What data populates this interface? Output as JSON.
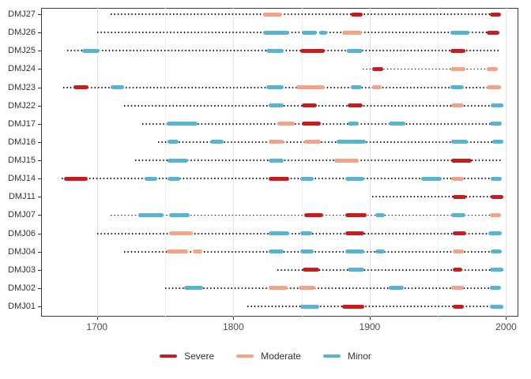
{
  "chart_data": {
    "type": "segment-timeline",
    "title": "",
    "xlabel": "",
    "ylabel": "",
    "x_axis": {
      "range": [
        1659,
        2009
      ],
      "major_ticks": [
        1700,
        1800,
        1900,
        2000
      ],
      "minor_gridlines": [
        1750,
        1850,
        1950
      ],
      "grid": true
    },
    "categories": [
      "DMJ27",
      "DMJ26",
      "DMJ25",
      "DMJ24",
      "DMJ23",
      "DMJ22",
      "DMJ17",
      "DMJ16",
      "DMJ15",
      "DMJ14",
      "DMJ11",
      "DMJ07",
      "DMJ06",
      "DMJ04",
      "DMJ03",
      "DMJ02",
      "DMJ01"
    ],
    "legend": [
      {
        "label": "Severe",
        "color": "#CB1B1D"
      },
      {
        "label": "Moderate",
        "color": "#F3A285"
      },
      {
        "label": "Minor",
        "color": "#56B4D2"
      }
    ],
    "legend_position": "bottom-center",
    "severity_colors": {
      "Severe": "#CB1B1D",
      "Moderate": "#F3A285",
      "Minor": "#56B4D2"
    },
    "dotted_line_color": "#1a1a1a",
    "rows": [
      {
        "id": "DMJ27",
        "line": [
          1710,
          1996
        ],
        "segments": [
          {
            "start": 1822,
            "end": 1836,
            "severity": "Moderate"
          },
          {
            "start": 1886,
            "end": 1895,
            "severity": "Severe"
          },
          {
            "start": 1988,
            "end": 1996,
            "severity": "Severe"
          }
        ]
      },
      {
        "id": "DMJ26",
        "line": [
          1700,
          1995
        ],
        "segments": [
          {
            "start": 1822,
            "end": 1841,
            "severity": "Minor"
          },
          {
            "start": 1850,
            "end": 1861,
            "severity": "Minor"
          },
          {
            "start": 1863,
            "end": 1869,
            "severity": "Minor"
          },
          {
            "start": 1880,
            "end": 1894,
            "severity": "Moderate"
          },
          {
            "start": 1959,
            "end": 1973,
            "severity": "Minor"
          },
          {
            "start": 1986,
            "end": 1995,
            "severity": "Severe"
          }
        ]
      },
      {
        "id": "DMJ25",
        "line": [
          1678,
          1995
        ],
        "segments": [
          {
            "start": 1689,
            "end": 1702,
            "severity": "Minor"
          },
          {
            "start": 1824,
            "end": 1837,
            "severity": "Minor"
          },
          {
            "start": 1849,
            "end": 1867,
            "severity": "Severe"
          },
          {
            "start": 1883,
            "end": 1895,
            "severity": "Minor"
          },
          {
            "start": 1959,
            "end": 1970,
            "severity": "Severe"
          }
        ]
      },
      {
        "id": "DMJ24",
        "line": [
          1895,
          1994
        ],
        "segments": [
          {
            "start": 1902,
            "end": 1910,
            "severity": "Severe"
          },
          {
            "start": 1959,
            "end": 1970,
            "severity": "Moderate"
          },
          {
            "start": 1986,
            "end": 1994,
            "severity": "Moderate"
          }
        ]
      },
      {
        "id": "DMJ23",
        "line": [
          1675,
          1996
        ],
        "segments": [
          {
            "start": 1683,
            "end": 1694,
            "severity": "Severe"
          },
          {
            "start": 1710,
            "end": 1720,
            "severity": "Minor"
          },
          {
            "start": 1824,
            "end": 1837,
            "severity": "Minor"
          },
          {
            "start": 1846,
            "end": 1867,
            "severity": "Moderate"
          },
          {
            "start": 1886,
            "end": 1894,
            "severity": "Minor"
          },
          {
            "start": 1902,
            "end": 1909,
            "severity": "Moderate"
          },
          {
            "start": 1959,
            "end": 1969,
            "severity": "Minor"
          },
          {
            "start": 1986,
            "end": 1996,
            "severity": "Moderate"
          }
        ]
      },
      {
        "id": "DMJ22",
        "line": [
          1720,
          1998
        ],
        "segments": [
          {
            "start": 1826,
            "end": 1837,
            "severity": "Minor"
          },
          {
            "start": 1850,
            "end": 1861,
            "severity": "Severe"
          },
          {
            "start": 1884,
            "end": 1895,
            "severity": "Severe"
          },
          {
            "start": 1960,
            "end": 1969,
            "severity": "Moderate"
          },
          {
            "start": 1989,
            "end": 1998,
            "severity": "Minor"
          }
        ]
      },
      {
        "id": "DMJ17",
        "line": [
          1733,
          1997
        ],
        "segments": [
          {
            "start": 1751,
            "end": 1774,
            "severity": "Minor"
          },
          {
            "start": 1832,
            "end": 1845,
            "severity": "Moderate"
          },
          {
            "start": 1850,
            "end": 1864,
            "severity": "Severe"
          },
          {
            "start": 1884,
            "end": 1892,
            "severity": "Minor"
          },
          {
            "start": 1914,
            "end": 1926,
            "severity": "Minor"
          },
          {
            "start": 1988,
            "end": 1997,
            "severity": "Minor"
          }
        ]
      },
      {
        "id": "DMJ16",
        "line": [
          1745,
          1998
        ],
        "segments": [
          {
            "start": 1752,
            "end": 1760,
            "severity": "Minor"
          },
          {
            "start": 1783,
            "end": 1793,
            "severity": "Minor"
          },
          {
            "start": 1826,
            "end": 1837,
            "severity": "Moderate"
          },
          {
            "start": 1852,
            "end": 1864,
            "severity": "Moderate"
          },
          {
            "start": 1876,
            "end": 1897,
            "severity": "Minor"
          },
          {
            "start": 1960,
            "end": 1972,
            "severity": "Minor"
          },
          {
            "start": 1990,
            "end": 1998,
            "severity": "Minor"
          }
        ]
      },
      {
        "id": "DMJ15",
        "line": [
          1728,
          1997
        ],
        "segments": [
          {
            "start": 1752,
            "end": 1767,
            "severity": "Minor"
          },
          {
            "start": 1826,
            "end": 1837,
            "severity": "Minor"
          },
          {
            "start": 1874,
            "end": 1892,
            "severity": "Moderate"
          },
          {
            "start": 1960,
            "end": 1975,
            "severity": "Severe"
          }
        ]
      },
      {
        "id": "DMJ14",
        "line": [
          1674,
          1997
        ],
        "segments": [
          {
            "start": 1676,
            "end": 1693,
            "severity": "Severe"
          },
          {
            "start": 1735,
            "end": 1744,
            "severity": "Minor"
          },
          {
            "start": 1752,
            "end": 1761,
            "severity": "Minor"
          },
          {
            "start": 1826,
            "end": 1841,
            "severity": "Severe"
          },
          {
            "start": 1849,
            "end": 1859,
            "severity": "Minor"
          },
          {
            "start": 1882,
            "end": 1896,
            "severity": "Minor"
          },
          {
            "start": 1938,
            "end": 1953,
            "severity": "Minor"
          },
          {
            "start": 1960,
            "end": 1969,
            "severity": "Moderate"
          },
          {
            "start": 1989,
            "end": 1997,
            "severity": "Minor"
          }
        ]
      },
      {
        "id": "DMJ11",
        "line": [
          1902,
          1998
        ],
        "segments": [
          {
            "start": 1961,
            "end": 1971,
            "severity": "Severe"
          },
          {
            "start": 1989,
            "end": 1998,
            "severity": "Severe"
          }
        ]
      },
      {
        "id": "DMJ07",
        "line": [
          1710,
          1996
        ],
        "segments": [
          {
            "start": 1730,
            "end": 1749,
            "severity": "Minor"
          },
          {
            "start": 1753,
            "end": 1768,
            "severity": "Minor"
          },
          {
            "start": 1852,
            "end": 1866,
            "severity": "Severe"
          },
          {
            "start": 1882,
            "end": 1898,
            "severity": "Severe"
          },
          {
            "start": 1904,
            "end": 1911,
            "severity": "Minor"
          },
          {
            "start": 1960,
            "end": 1970,
            "severity": "Minor"
          },
          {
            "start": 1988,
            "end": 1996,
            "severity": "Moderate"
          }
        ]
      },
      {
        "id": "DMJ06",
        "line": [
          1700,
          1997
        ],
        "segments": [
          {
            "start": 1753,
            "end": 1770,
            "severity": "Moderate"
          },
          {
            "start": 1826,
            "end": 1841,
            "severity": "Minor"
          },
          {
            "start": 1849,
            "end": 1858,
            "severity": "Minor"
          },
          {
            "start": 1882,
            "end": 1896,
            "severity": "Severe"
          },
          {
            "start": 1961,
            "end": 1971,
            "severity": "Severe"
          },
          {
            "start": 1987,
            "end": 1997,
            "severity": "Minor"
          }
        ]
      },
      {
        "id": "DMJ04",
        "line": [
          1720,
          1997
        ],
        "segments": [
          {
            "start": 1751,
            "end": 1767,
            "severity": "Moderate"
          },
          {
            "start": 1770,
            "end": 1777,
            "severity": "Moderate"
          },
          {
            "start": 1826,
            "end": 1837,
            "severity": "Minor"
          },
          {
            "start": 1849,
            "end": 1859,
            "severity": "Minor"
          },
          {
            "start": 1882,
            "end": 1896,
            "severity": "Minor"
          },
          {
            "start": 1904,
            "end": 1911,
            "severity": "Minor"
          },
          {
            "start": 1961,
            "end": 1969,
            "severity": "Moderate"
          },
          {
            "start": 1989,
            "end": 1997,
            "severity": "Minor"
          }
        ]
      },
      {
        "id": "DMJ03",
        "line": [
          1832,
          1998
        ],
        "segments": [
          {
            "start": 1851,
            "end": 1863,
            "severity": "Severe"
          },
          {
            "start": 1884,
            "end": 1896,
            "severity": "Minor"
          },
          {
            "start": 1961,
            "end": 1968,
            "severity": "Severe"
          },
          {
            "start": 1988,
            "end": 1998,
            "severity": "Minor"
          }
        ]
      },
      {
        "id": "DMJ02",
        "line": [
          1750,
          1996
        ],
        "segments": [
          {
            "start": 1764,
            "end": 1778,
            "severity": "Minor"
          },
          {
            "start": 1826,
            "end": 1840,
            "severity": "Moderate"
          },
          {
            "start": 1848,
            "end": 1860,
            "severity": "Moderate"
          },
          {
            "start": 1914,
            "end": 1925,
            "severity": "Minor"
          },
          {
            "start": 1960,
            "end": 1969,
            "severity": "Moderate"
          },
          {
            "start": 1988,
            "end": 1996,
            "severity": "Minor"
          }
        ]
      },
      {
        "id": "DMJ01",
        "line": [
          1810,
          1998
        ],
        "segments": [
          {
            "start": 1849,
            "end": 1863,
            "severity": "Minor"
          },
          {
            "start": 1880,
            "end": 1896,
            "severity": "Severe"
          },
          {
            "start": 1961,
            "end": 1969,
            "severity": "Severe"
          },
          {
            "start": 1988,
            "end": 1998,
            "severity": "Minor"
          }
        ]
      }
    ]
  }
}
